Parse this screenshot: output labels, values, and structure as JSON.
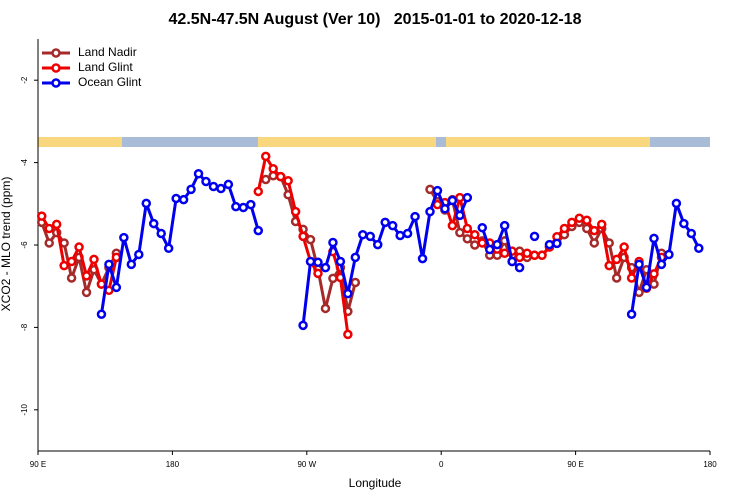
{
  "chart_data": {
    "type": "line",
    "title": "42.5N-47.5N August (Ver 10)   2015-01-01 to 2020-12-18",
    "x_label": "Longitude",
    "y_label": "XCO2 - MLO trend (ppm)",
    "xlim": [
      90,
      540
    ],
    "xticks": [
      {
        "value": 90,
        "label": "90 E"
      },
      180,
      {
        "value": 270,
        "label": "90 W"
      },
      {
        "value": 360,
        "label": "0"
      },
      {
        "value": 450,
        "label": "90 E"
      },
      {
        "value": 540,
        "label": "180"
      }
    ],
    "ylim": [
      -11,
      -1
    ],
    "yticks": [
      -10,
      -8,
      -6,
      -4,
      -2
    ],
    "legend": "top-left",
    "series": [
      {
        "name": "Land Nadir",
        "color": "#a52a2a",
        "x": [
          92.5,
          97.5,
          102.5,
          107.5,
          112.5,
          117.5,
          122.5,
          127.5,
          132.5,
          137.5,
          142.5,
          200,
          242.5,
          247.5,
          252.5,
          257.5,
          262.5,
          267.5,
          272.5,
          277.5,
          282.5,
          287.5,
          292.5,
          297.5,
          302.5,
          330,
          352.5,
          357.5,
          362.5,
          367.5,
          372.5,
          377.5,
          382.5,
          387.5,
          392.5,
          397.5,
          402.5,
          407.5,
          412.5,
          417.5,
          422.5,
          427.5,
          432.5,
          437.5,
          442.5,
          447.5,
          452.5,
          457.5,
          462.5,
          467.5,
          472.5,
          477.5,
          482.5,
          487.5,
          492.5,
          497.5,
          502.5,
          507.5
        ],
        "values": [
          -5.45,
          -5.95,
          -5.7,
          -5.95,
          -6.8,
          -6.3,
          -7.15,
          -6.6,
          -6.95,
          -6.55,
          -6.2,
          null,
          -4.41,
          -4.32,
          -4.34,
          -4.78,
          -5.43,
          -5.62,
          -5.87,
          -6.59,
          -7.54,
          -6.81,
          -6.55,
          -7.61,
          -6.91,
          null,
          -4.65,
          -4.95,
          -5.15,
          -4.9,
          -5.7,
          -5.85,
          -6.0,
          -5.9,
          -6.25,
          -6.25,
          -5.9,
          -6.4,
          -6.15,
          -6.3,
          -6.25,
          -6.25,
          -6.05,
          -5.95,
          -5.75,
          -5.55,
          -5.45,
          -5.6,
          -5.95,
          -5.6,
          -5.95,
          -6.8,
          -6.3,
          -6.55,
          -7.15,
          -6.6,
          -6.95,
          -6.2
        ]
      },
      {
        "name": "Land Glint",
        "color": "#ee0000",
        "x": [
          92.5,
          97.5,
          102.5,
          107.5,
          112.5,
          117.5,
          122.5,
          127.5,
          132.5,
          137.5,
          142.5,
          200,
          237.5,
          242.5,
          247.5,
          252.5,
          257.5,
          262.5,
          267.5,
          272.5,
          277.5,
          282.5,
          287.5,
          292.5,
          297.5,
          330,
          357.5,
          362.5,
          367.5,
          372.5,
          377.5,
          382.5,
          387.5,
          392.5,
          397.5,
          402.5,
          407.5,
          412.5,
          417.5,
          422.5,
          427.5,
          432.5,
          437.5,
          442.5,
          447.5,
          452.5,
          457.5,
          462.5,
          467.5,
          472.5,
          477.5,
          482.5,
          487.5,
          492.5,
          497.5,
          502.5,
          507.5
        ],
        "values": [
          -5.3,
          -5.6,
          -5.5,
          -6.5,
          -6.4,
          -6.05,
          -6.75,
          -6.35,
          -6.95,
          -7.1,
          -6.3,
          null,
          -4.7,
          -3.85,
          -4.15,
          -4.34,
          -4.44,
          -5.19,
          -5.79,
          -6.4,
          -6.69,
          null,
          -6.16,
          -6.79,
          -8.17,
          null,
          -5.02,
          -4.97,
          -5.53,
          -4.85,
          -5.6,
          -5.75,
          -5.95,
          -5.95,
          -6.1,
          -6.2,
          -6.15,
          -6.3,
          -6.2,
          -6.25,
          -6.25,
          -6.05,
          -5.8,
          -5.6,
          -5.45,
          -5.35,
          -5.4,
          -5.65,
          -5.5,
          -6.5,
          -6.35,
          -6.05,
          -6.8,
          -6.4,
          -7.05,
          -6.7,
          -6.3
        ]
      },
      {
        "name": "Ocean Glint",
        "color": "#0000ee",
        "x": [
          132.5,
          137.5,
          142.5,
          147.5,
          152.5,
          157.5,
          162.5,
          167.5,
          172.5,
          177.5,
          182.5,
          187.5,
          192.5,
          197.5,
          202.5,
          207.5,
          212.5,
          217.5,
          222.5,
          227.5,
          232.5,
          237.5,
          250,
          267.5,
          272.5,
          277.5,
          282.5,
          287.5,
          292.5,
          297.5,
          302.5,
          307.5,
          312.5,
          317.5,
          322.5,
          327.5,
          332.5,
          337.5,
          342.5,
          347.5,
          352.5,
          357.5,
          362.5,
          367.5,
          372.5,
          377.5,
          382.5,
          387.5,
          392.5,
          397.5,
          402.5,
          407.5,
          412.5,
          417.5,
          422.5,
          427.5,
          432.5,
          437.5,
          460,
          487.5,
          492.5,
          497.5,
          502.5,
          507.5,
          512.5,
          517.5,
          522.5,
          527.5,
          532.5
        ],
        "values": [
          -7.68,
          -6.47,
          -7.03,
          -5.82,
          -6.47,
          -6.23,
          -4.99,
          -5.48,
          -5.72,
          -6.08,
          -4.87,
          -4.9,
          -4.65,
          -4.27,
          -4.46,
          -4.58,
          -4.63,
          -4.53,
          -5.07,
          -5.09,
          -5.02,
          -5.65,
          null,
          -7.95,
          -6.4,
          -6.42,
          -6.55,
          -5.94,
          -6.4,
          -7.18,
          -6.3,
          -5.75,
          -5.79,
          -5.99,
          -5.45,
          -5.53,
          -5.77,
          -5.72,
          -5.31,
          -6.33,
          -5.19,
          -4.68,
          -5.12,
          -4.92,
          -5.28,
          -4.85,
          null,
          -5.58,
          -6.11,
          -5.99,
          -5.53,
          -6.4,
          -6.55,
          null,
          -5.79,
          null,
          -5.99,
          -5.96,
          null,
          -7.68,
          -6.47,
          -7.03,
          -5.84,
          -6.47,
          -6.23,
          -4.99,
          -5.48,
          -5.72,
          -6.08
        ]
      }
    ]
  }
}
